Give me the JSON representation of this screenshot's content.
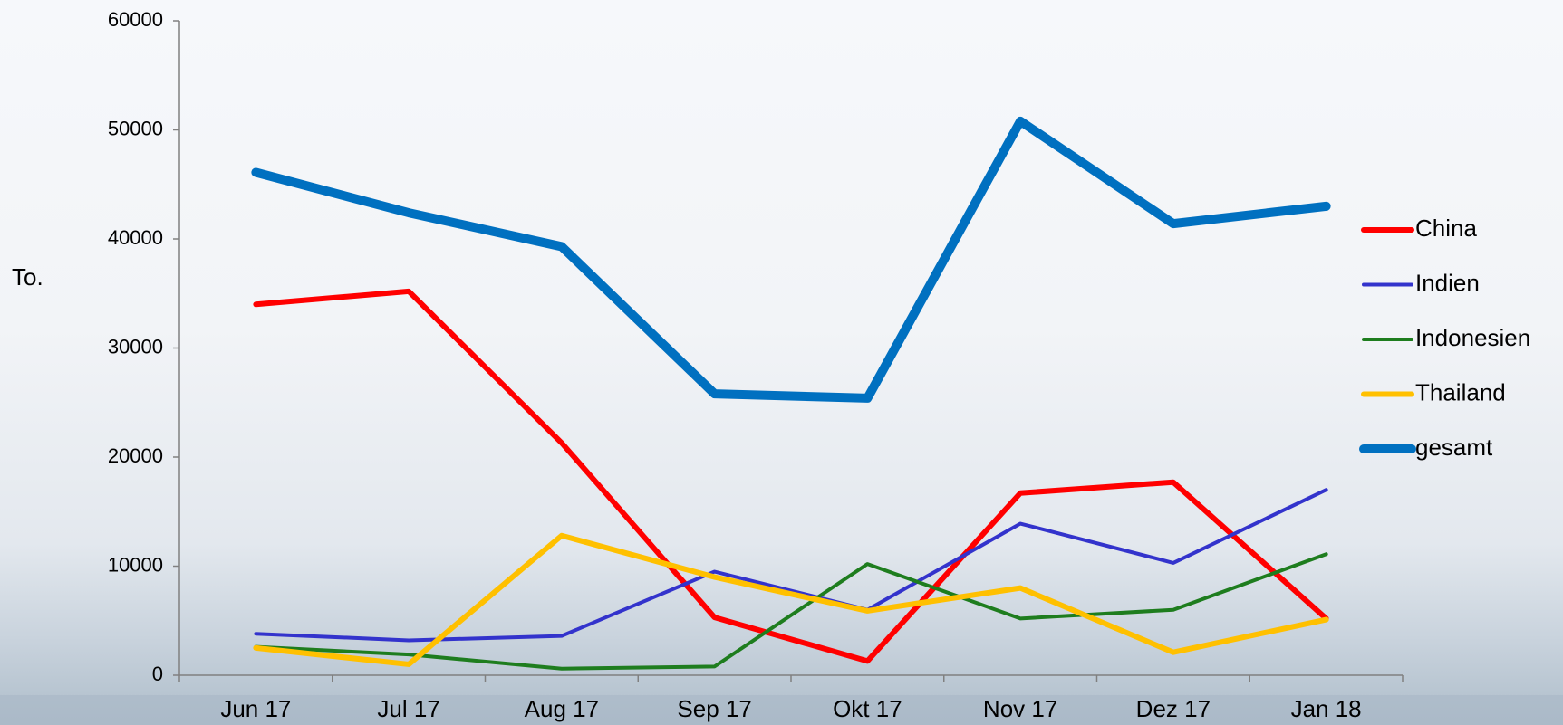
{
  "chart_data": {
    "type": "line",
    "ylabel": "To.",
    "categories": [
      "Jun 17",
      "Jul 17",
      "Aug 17",
      "Sep 17",
      "Okt 17",
      "Nov 17",
      "Dez 17",
      "Jan 18"
    ],
    "series": [
      {
        "name": "China",
        "color": "#ff0000",
        "width": 6,
        "values": [
          34000,
          35200,
          21300,
          5300,
          1300,
          16700,
          17700,
          5200
        ]
      },
      {
        "name": "Indien",
        "color": "#3333cc",
        "width": 4,
        "values": [
          3800,
          3200,
          3600,
          9500,
          6000,
          13900,
          10300,
          17000
        ]
      },
      {
        "name": "Indonesien",
        "color": "#1e7d1e",
        "width": 4,
        "values": [
          2600,
          1900,
          600,
          800,
          10200,
          5200,
          6000,
          11100
        ]
      },
      {
        "name": "Thailand",
        "color": "#ffc000",
        "width": 6,
        "values": [
          2500,
          1000,
          12800,
          9000,
          5900,
          8000,
          2100,
          5100
        ]
      },
      {
        "name": "gesamt",
        "color": "#0070c0",
        "width": 10,
        "values": [
          46100,
          42400,
          39300,
          25800,
          25400,
          50800,
          41400,
          43000
        ]
      }
    ],
    "ylim": [
      0,
      60000
    ],
    "yticks": [
      0,
      10000,
      20000,
      30000,
      40000,
      50000,
      60000
    ],
    "legend": "right"
  }
}
